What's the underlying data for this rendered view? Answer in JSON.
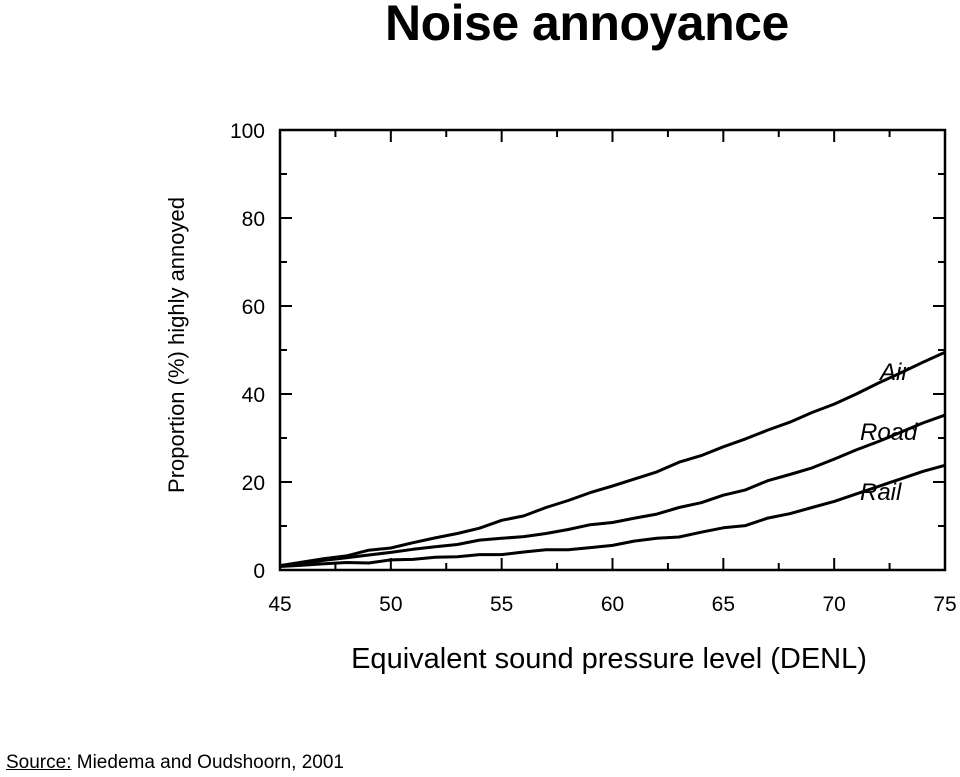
{
  "title": "Noise annoyance",
  "source": {
    "label": "Source:",
    "text": " Miedema and Oudshoorn, 2001"
  },
  "chart_data": {
    "type": "line",
    "xlabel": "Equivalent sound pressure level (DENL)",
    "ylabel": "Proportion (%) highly annoyed",
    "xlim": [
      45,
      75
    ],
    "ylim": [
      0,
      100
    ],
    "xticks": [
      "45",
      "50",
      "55",
      "60",
      "65",
      "70",
      "75"
    ],
    "yticks": [
      "0",
      "20",
      "40",
      "60",
      "80",
      "100"
    ],
    "grid": false,
    "x": [
      45,
      46,
      47,
      48,
      49,
      50,
      51,
      52,
      53,
      54,
      55,
      56,
      57,
      58,
      59,
      60,
      61,
      62,
      63,
      64,
      65,
      66,
      67,
      68,
      69,
      70,
      71,
      72,
      73,
      74,
      75
    ],
    "series": [
      {
        "name": "Air",
        "values": [
          1,
          1.8,
          2.6,
          3.2,
          4.5,
          5,
          6.2,
          7.3,
          8.3,
          9.5,
          11.3,
          12.3,
          14.2,
          15.8,
          17.6,
          19.1,
          20.7,
          22.3,
          24.5,
          26,
          28,
          29.8,
          31.8,
          33.6,
          35.8,
          37.7,
          40,
          42.5,
          44.8,
          47.2,
          49.5
        ]
      },
      {
        "name": "Road",
        "values": [
          1,
          1.5,
          2.2,
          2.8,
          3.4,
          4,
          4.7,
          5.3,
          5.8,
          6.8,
          7.2,
          7.6,
          8.3,
          9.2,
          10.3,
          10.8,
          11.8,
          12.7,
          14.2,
          15.3,
          17,
          18.2,
          20.3,
          21.7,
          23.2,
          25.2,
          27.3,
          29.2,
          31.3,
          33.4,
          35.2
        ]
      },
      {
        "name": "Rail",
        "values": [
          0.8,
          1.1,
          1.4,
          1.7,
          1.6,
          2.3,
          2.4,
          2.9,
          3,
          3.5,
          3.5,
          4.1,
          4.6,
          4.6,
          5.1,
          5.6,
          6.6,
          7.2,
          7.5,
          8.6,
          9.6,
          10.1,
          11.8,
          12.8,
          14.2,
          15.6,
          17.3,
          19,
          20.7,
          22.4,
          23.8
        ]
      }
    ]
  }
}
